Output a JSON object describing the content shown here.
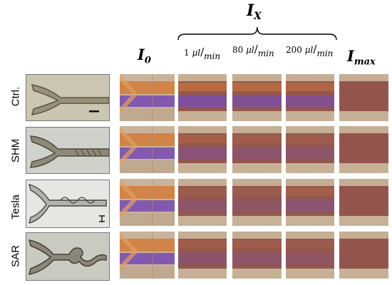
{
  "header": {
    "ix_group": {
      "symbol": "I",
      "subscript": "X"
    },
    "i0": {
      "symbol": "I",
      "subscript": "0"
    },
    "imax": {
      "symbol": "I",
      "subscript": "max"
    },
    "rates": [
      {
        "value": "1",
        "unit_top": "μl",
        "unit_bottom": "min"
      },
      {
        "value": "80",
        "unit_top": "μl",
        "unit_bottom": "min"
      },
      {
        "value": "200",
        "unit_top": "μl",
        "unit_bottom": "min"
      }
    ]
  },
  "rows": [
    {
      "label": "Ctrl."
    },
    {
      "label": "SHM"
    },
    {
      "label": "Tesla"
    },
    {
      "label": "SAR"
    }
  ],
  "colors": {
    "orange_band": "#d27a3a",
    "purple_band": "#7a4fb0",
    "mixed": "#8e4c48",
    "tile_bg": "#c9b39a",
    "photo_bg": "#e8e4da"
  }
}
